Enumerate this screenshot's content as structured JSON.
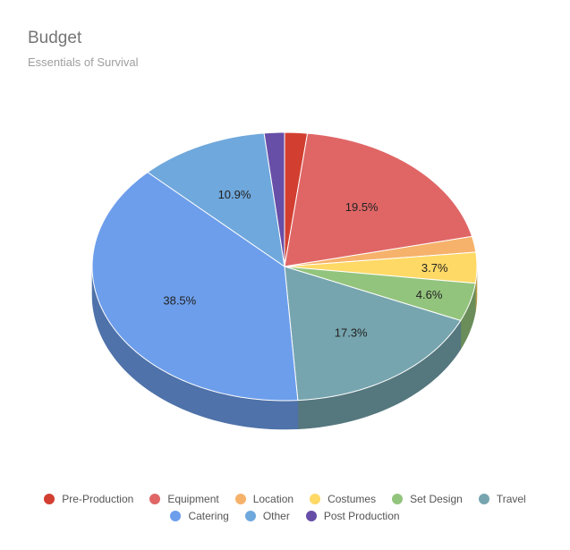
{
  "chart_data": {
    "type": "pie",
    "title": "Budget",
    "subtitle": "Essentials of Survival",
    "three_d": true,
    "slices": [
      {
        "name": "Pre-Production",
        "value": 1.9,
        "label": "",
        "color": "#d23f31"
      },
      {
        "name": "Equipment",
        "value": 19.5,
        "label": "19.5%",
        "color": "#e06666"
      },
      {
        "name": "Location",
        "value": 1.9,
        "label": "",
        "color": "#f6b26b"
      },
      {
        "name": "Costumes",
        "value": 3.7,
        "label": "3.7%",
        "color": "#ffd966"
      },
      {
        "name": "Set Design",
        "value": 4.6,
        "label": "4.6%",
        "color": "#93c47d"
      },
      {
        "name": "Travel",
        "value": 17.3,
        "label": "17.3%",
        "color": "#76a5af"
      },
      {
        "name": "Catering",
        "value": 38.5,
        "label": "38.5%",
        "color": "#6d9eeb"
      },
      {
        "name": "Other",
        "value": 10.9,
        "label": "10.9%",
        "color": "#6fa8dc"
      },
      {
        "name": "Post Production",
        "value": 1.7,
        "label": "",
        "color": "#674ea7"
      }
    ],
    "legend_position": "bottom",
    "legend_rows": [
      [
        "Pre-Production",
        "Equipment",
        "Location",
        "Costumes",
        "Set Design",
        "Travel"
      ],
      [
        "Catering",
        "Other",
        "Post Production"
      ]
    ]
  }
}
